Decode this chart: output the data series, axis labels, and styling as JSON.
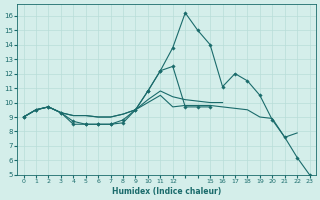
{
  "xlabel": "Humidex (Indice chaleur)",
  "bg_color": "#d4eeea",
  "grid_color": "#b8ddd8",
  "line_color": "#1a6b6b",
  "xlim": [
    -0.5,
    23.5
  ],
  "ylim": [
    5,
    16.8
  ],
  "xtick_vals": [
    0,
    1,
    2,
    3,
    4,
    5,
    6,
    7,
    8,
    9,
    10,
    11,
    12,
    15,
    16,
    17,
    18,
    19,
    20,
    21,
    22,
    23
  ],
  "xtick_labels": [
    "0",
    "1",
    "2",
    "3",
    "4",
    "5",
    "6",
    "7",
    "8",
    "9",
    "10",
    "11",
    "12",
    "15",
    "16",
    "17",
    "18",
    "19",
    "20",
    "21",
    "22",
    "23"
  ],
  "yticks": [
    5,
    6,
    7,
    8,
    9,
    10,
    11,
    12,
    13,
    14,
    15,
    16
  ],
  "series": [
    {
      "x": [
        0,
        1,
        2,
        3,
        4,
        5,
        6,
        7,
        8,
        9,
        10,
        11,
        12,
        13,
        14,
        15,
        16,
        17,
        18,
        19,
        20,
        21,
        22,
        23
      ],
      "y": [
        9.0,
        9.5,
        9.7,
        9.3,
        8.5,
        8.5,
        8.5,
        8.5,
        8.6,
        9.5,
        10.8,
        12.2,
        13.8,
        16.2,
        15.0,
        14.0,
        11.1,
        12.0,
        11.5,
        10.5,
        8.8,
        7.6,
        6.2,
        5.0
      ],
      "marker": true
    },
    {
      "x": [
        0,
        1,
        2,
        3,
        4,
        5,
        6,
        7,
        8,
        9,
        10,
        11,
        12,
        13,
        14,
        15,
        16,
        17,
        18,
        19,
        20,
        21,
        22
      ],
      "y": [
        9.0,
        9.5,
        9.7,
        9.3,
        9.1,
        9.1,
        9.0,
        9.0,
        9.2,
        9.5,
        10.0,
        10.5,
        9.7,
        9.8,
        9.8,
        9.8,
        9.7,
        9.6,
        9.5,
        9.0,
        8.9,
        7.6,
        7.9
      ],
      "marker": false
    },
    {
      "x": [
        0,
        1,
        2,
        3,
        4,
        5,
        6,
        7,
        8,
        9,
        10,
        11,
        12,
        13,
        14,
        15,
        16
      ],
      "y": [
        9.0,
        9.5,
        9.7,
        9.3,
        9.1,
        9.1,
        9.0,
        9.0,
        9.2,
        9.5,
        10.2,
        10.8,
        10.4,
        10.2,
        10.1,
        10.0,
        10.0
      ],
      "marker": false
    },
    {
      "x": [
        0,
        1,
        2,
        3,
        4,
        5,
        6,
        7,
        8,
        9,
        10,
        11,
        12,
        13,
        14,
        15
      ],
      "y": [
        9.0,
        9.5,
        9.7,
        9.3,
        8.7,
        8.5,
        8.5,
        8.5,
        8.8,
        9.5,
        10.8,
        12.2,
        12.5,
        9.7,
        9.7,
        9.7
      ],
      "marker": true
    }
  ]
}
